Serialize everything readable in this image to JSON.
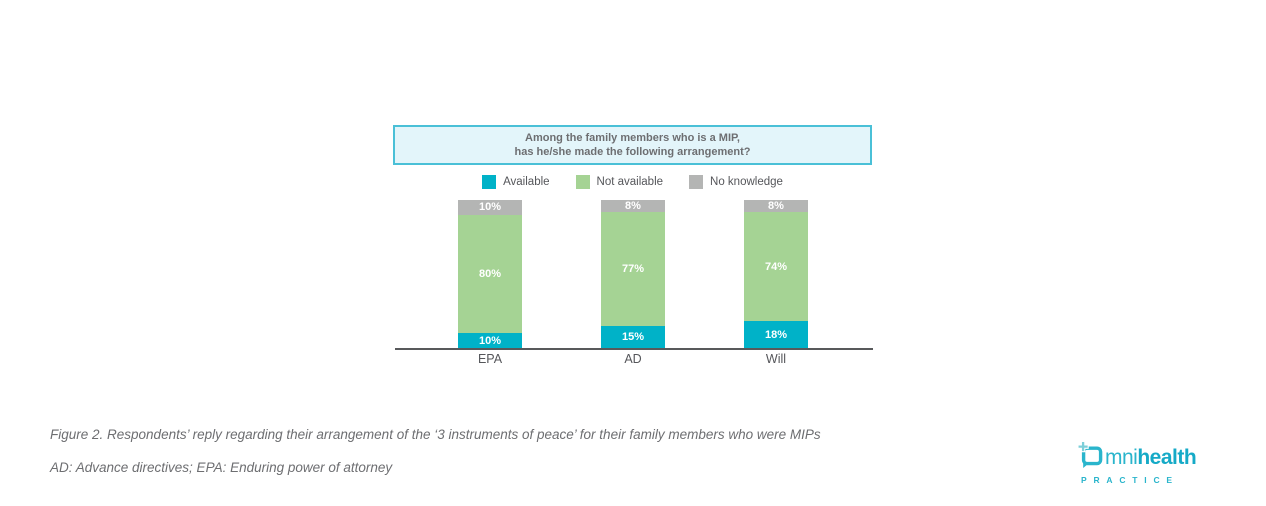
{
  "header": {
    "title_line1": "Among the family members who is a MIP,",
    "title_line2": "has he/she made the following arrangement?"
  },
  "chart_data": {
    "type": "bar",
    "stacked": true,
    "title": "Among the family members who is a MIP, has he/she made the following arrangement?",
    "categories": [
      "EPA",
      "AD",
      "Will"
    ],
    "series": [
      {
        "name": "Available",
        "color": "#00b2c8",
        "values": [
          10,
          15,
          18
        ]
      },
      {
        "name": "Not available",
        "color": "#a5d394",
        "values": [
          80,
          77,
          74
        ]
      },
      {
        "name": "No knowledge",
        "color": "#b4b5b4",
        "values": [
          10,
          8,
          8
        ]
      }
    ],
    "value_suffix": "%",
    "ylim": [
      0,
      100
    ],
    "grid": false,
    "legend_position": "top",
    "xlabel": "",
    "ylabel": ""
  },
  "caption": {
    "line1": "Figure 2. Respondents’ reply regarding their arrangement of the ‘3 instruments of peace’ for their family members who were MIPs",
    "line2": "AD: Advance directives; EPA: Enduring power of attorney"
  },
  "logo": {
    "brand_light": "mni",
    "brand_bold": "health",
    "subtext": "PRACTICE"
  },
  "colors": {
    "available": "#00b2c8",
    "not_available": "#a5d394",
    "no_knowledge": "#b4b5b4",
    "title_box_border": "#4ac0d7",
    "title_box_fill": "#e3f5fa",
    "text_gray": "#6d6e71",
    "axis": "#58595b",
    "logo_teal": "#2ab5cc"
  }
}
